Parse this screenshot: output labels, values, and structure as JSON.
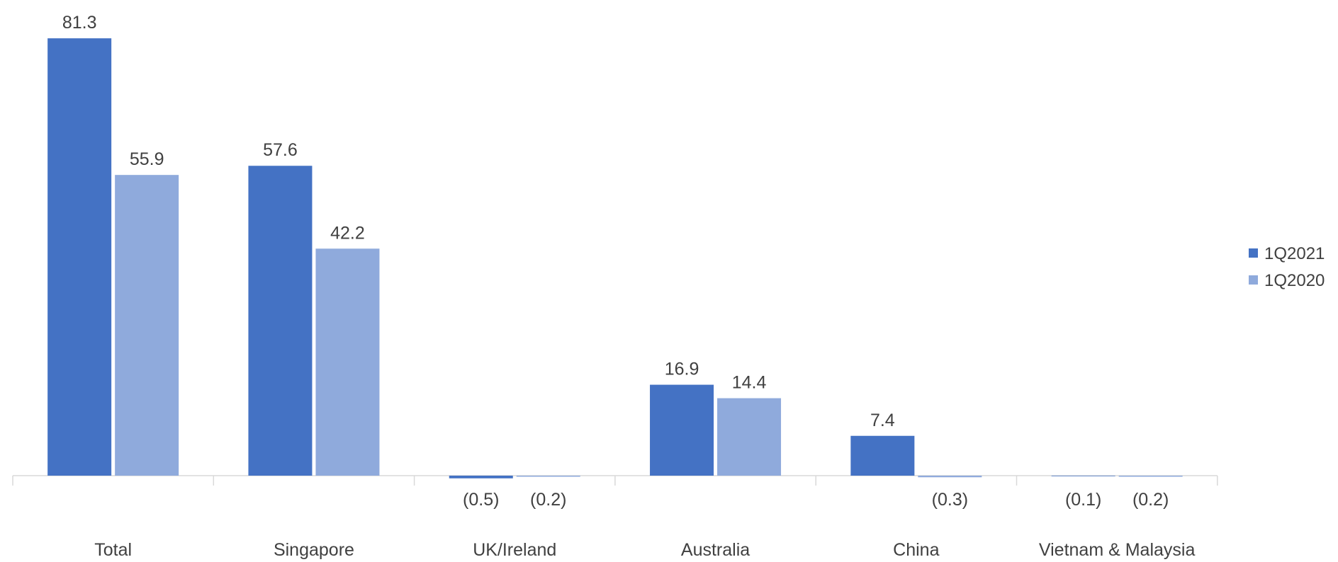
{
  "chart_data": {
    "type": "bar",
    "categories": [
      "Total",
      "Singapore",
      "UK/Ireland",
      "Australia",
      "China",
      "Vietnam & Malaysia"
    ],
    "series": [
      {
        "name": "1Q2021",
        "color": "#4472C4",
        "values": [
          81.3,
          57.6,
          -0.5,
          16.9,
          7.4,
          -0.1
        ],
        "labels": [
          "81.3",
          "57.6",
          "(0.5)",
          "16.9",
          "7.4",
          "(0.1)"
        ]
      },
      {
        "name": "1Q2020",
        "color": "#8FAADC",
        "values": [
          55.9,
          42.2,
          -0.2,
          14.4,
          -0.3,
          -0.2
        ],
        "labels": [
          "55.9",
          "42.2",
          "(0.2)",
          "14.4",
          "(0.3)",
          "(0.2)"
        ]
      }
    ],
    "legend_position": "right",
    "grid": false
  }
}
